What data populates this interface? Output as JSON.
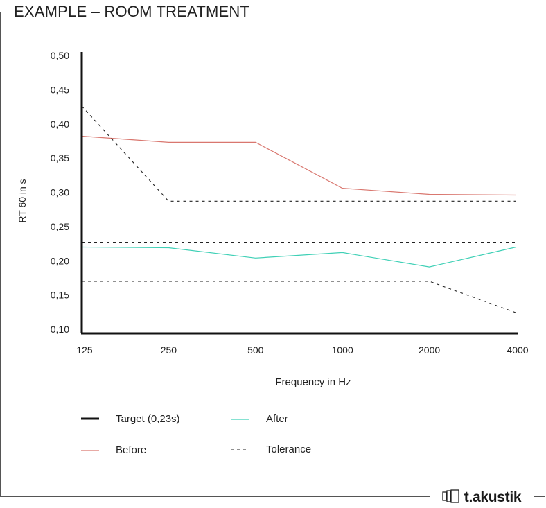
{
  "title": "EXAMPLE – ROOM TREATMENT",
  "brand": {
    "icon": "door-panel-icon",
    "name_part1": "t",
    "name_dot": ".",
    "name_part2": "akustik"
  },
  "colors": {
    "before": "#d9776f",
    "after": "#3fd0b6",
    "target": "#111111",
    "tolerance": "#222222",
    "axis": "#111111"
  },
  "chart_data": {
    "type": "line",
    "xlabel": "Frequency in Hz",
    "ylabel": "RT 60 in s",
    "categories": [
      "125",
      "250",
      "500",
      "1000",
      "2000",
      "4000"
    ],
    "ylim": [
      0.1,
      0.5
    ],
    "yticks": [
      "0,10",
      "0,15",
      "0,20",
      "0,25",
      "0,30",
      "0,35",
      "0,40",
      "0,45",
      "0,50"
    ],
    "yticks_values": [
      0.1,
      0.15,
      0.2,
      0.25,
      0.3,
      0.35,
      0.4,
      0.45,
      0.5
    ],
    "grid": false,
    "legend_position": "bottom",
    "series": [
      {
        "name": "Before",
        "values": [
          0.382,
          0.373,
          0.373,
          0.306,
          0.297,
          0.296
        ]
      },
      {
        "name": "After",
        "values": [
          0.22,
          0.219,
          0.204,
          0.212,
          0.191,
          0.22
        ]
      },
      {
        "name": "Tolerance",
        "style": "dashed",
        "values": [
          0.426,
          0.287,
          0.287,
          0.287,
          0.287,
          0.287
        ]
      },
      {
        "name": "Tolerance",
        "style": "dashed",
        "values": [
          0.227,
          0.227,
          0.227,
          0.227,
          0.227,
          0.227
        ]
      },
      {
        "name": "Tolerance",
        "style": "dashed",
        "values": [
          0.17,
          0.17,
          0.17,
          0.17,
          0.17,
          0.124
        ]
      }
    ],
    "legend": [
      {
        "key": "target",
        "label": "Target (0,23s)"
      },
      {
        "key": "after",
        "label": "After"
      },
      {
        "key": "before",
        "label": "Before"
      },
      {
        "key": "tolerance",
        "label": "Tolerance"
      }
    ]
  }
}
